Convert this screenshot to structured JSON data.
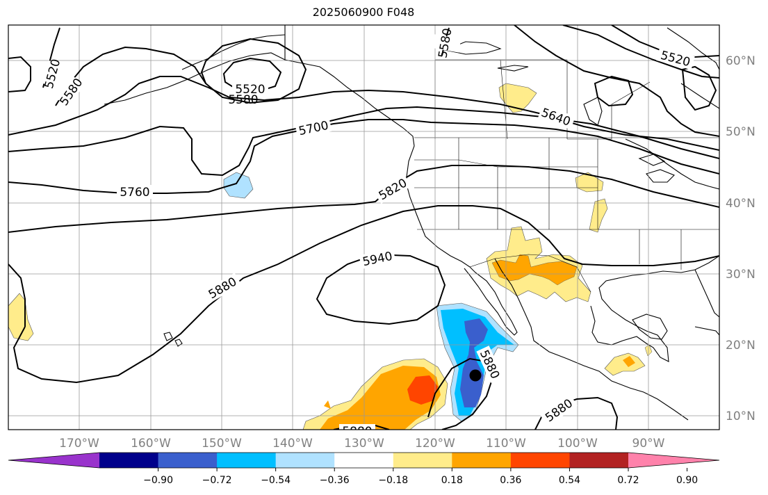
{
  "title": "2025060900 F048",
  "map": {
    "projection": "PlateCarree",
    "lon_range": [
      -180,
      -80
    ],
    "lat_range": [
      8,
      65
    ],
    "grid": true,
    "lon_ticks": [
      "170°W",
      "160°W",
      "150°W",
      "140°W",
      "130°W",
      "120°W",
      "110°W",
      "100°W",
      "90°W"
    ],
    "lat_ticks": [
      "60°N",
      "50°N",
      "40°N",
      "30°N",
      "20°N",
      "10°N"
    ],
    "contour_labels": [
      "5520",
      "5580",
      "5520",
      "5580",
      "5580",
      "5640",
      "5700",
      "5760",
      "5820",
      "5880",
      "5940",
      "5880",
      "5880",
      "5880",
      "5520"
    ],
    "marker": {
      "lon": -114.3,
      "lat": 15.5,
      "name": "storm-center"
    }
  },
  "colorbar": {
    "ticks": [
      "−0.90",
      "−0.72",
      "−0.54",
      "−0.36",
      "−0.18",
      "0.18",
      "0.36",
      "0.54",
      "0.72",
      "0.90"
    ],
    "colors": [
      "#9933cc",
      "#00008b",
      "#3a5fcd",
      "#00bfff",
      "#b0e2ff",
      "#ffffff",
      "#ffec8b",
      "#ffa500",
      "#ff4500",
      "#b22222",
      "#ff82ab"
    ]
  }
}
